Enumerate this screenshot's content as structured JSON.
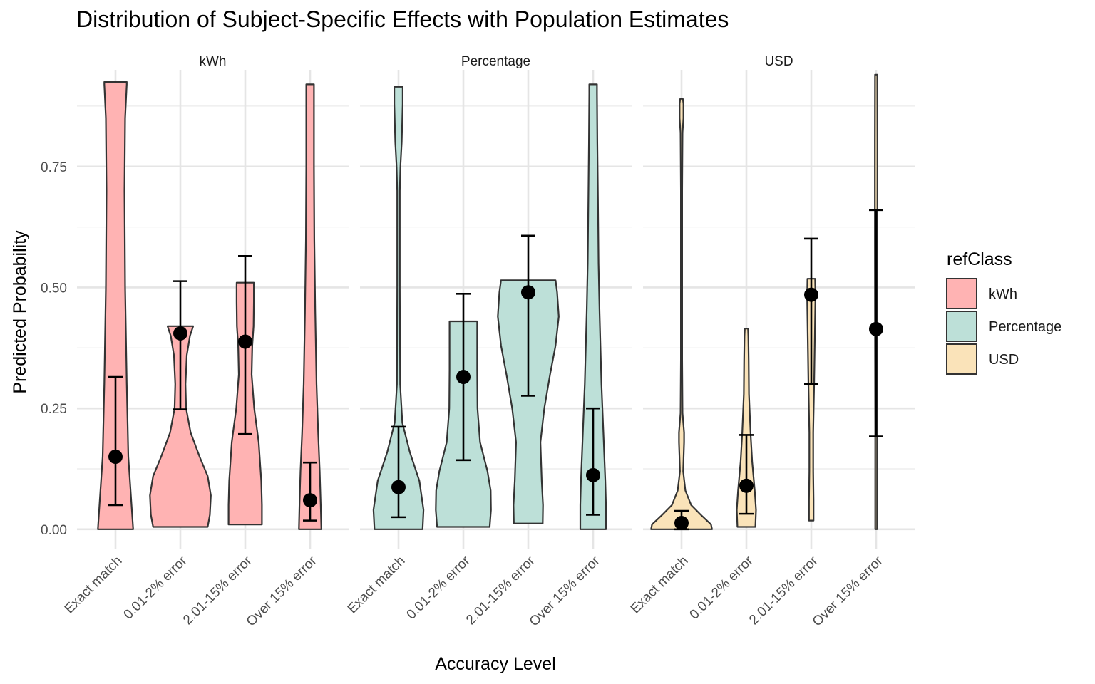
{
  "chart_data": {
    "type": "violin",
    "title": "Distribution of Subject-Specific Effects with Population Estimates",
    "xlabel": "Accuracy Level",
    "ylabel": "Predicted Probability",
    "ylim": [
      -0.04,
      0.95
    ],
    "yticks": [
      0.0,
      0.25,
      0.5,
      0.75
    ],
    "ytick_labels": [
      "0.00",
      "0.25",
      "0.50",
      "0.75"
    ],
    "categories": [
      "Exact match",
      "0.01-2% error",
      "2.01-15% error",
      "Over 15% error"
    ],
    "grid": true,
    "legend": {
      "title": "refClass",
      "placement": "right",
      "entries": [
        "kWh",
        "Percentage",
        "USD"
      ]
    },
    "colors": {
      "kWh": "#ffb3b3",
      "Percentage": "#bde0d8",
      "USD": "#fae3b9"
    },
    "panels": [
      {
        "name": "kWh",
        "estimates": [
          {
            "category": "Exact match",
            "point": 0.15,
            "lower": 0.05,
            "upper": 0.315,
            "range": [
              0.0,
              0.925
            ],
            "density": [
              [
                0.0,
                0.55
              ],
              [
                0.05,
                0.5
              ],
              [
                0.15,
                0.4
              ],
              [
                0.3,
                0.35
              ],
              [
                0.5,
                0.3
              ],
              [
                0.7,
                0.28
              ],
              [
                0.85,
                0.3
              ],
              [
                0.92,
                0.35
              ],
              [
                0.925,
                0.35
              ]
            ]
          },
          {
            "category": "0.01-2% error",
            "point": 0.405,
            "lower": 0.248,
            "upper": 0.513,
            "range": [
              0.005,
              0.42
            ],
            "density": [
              [
                0.005,
                0.85
              ],
              [
                0.03,
                0.92
              ],
              [
                0.07,
                0.95
              ],
              [
                0.11,
                0.85
              ],
              [
                0.15,
                0.6
              ],
              [
                0.2,
                0.32
              ],
              [
                0.25,
                0.18
              ],
              [
                0.3,
                0.16
              ],
              [
                0.36,
                0.2
              ],
              [
                0.4,
                0.3
              ],
              [
                0.42,
                0.4
              ]
            ]
          },
          {
            "category": "2.01-15% error",
            "point": 0.388,
            "lower": 0.197,
            "upper": 0.565,
            "range": [
              0.01,
              0.51
            ],
            "density": [
              [
                0.01,
                0.52
              ],
              [
                0.05,
                0.52
              ],
              [
                0.1,
                0.5
              ],
              [
                0.18,
                0.42
              ],
              [
                0.25,
                0.28
              ],
              [
                0.32,
                0.2
              ],
              [
                0.38,
                0.22
              ],
              [
                0.42,
                0.26
              ],
              [
                0.47,
                0.27
              ],
              [
                0.5,
                0.27
              ],
              [
                0.51,
                0.27
              ]
            ]
          },
          {
            "category": "Over 15% error",
            "point": 0.06,
            "lower": 0.018,
            "upper": 0.138,
            "range": [
              0.0,
              0.92
            ],
            "density": [
              [
                0.0,
                0.35
              ],
              [
                0.05,
                0.33
              ],
              [
                0.12,
                0.3
              ],
              [
                0.2,
                0.25
              ],
              [
                0.3,
                0.2
              ],
              [
                0.45,
                0.16
              ],
              [
                0.6,
                0.13
              ],
              [
                0.75,
                0.12
              ],
              [
                0.9,
                0.12
              ],
              [
                0.92,
                0.12
              ]
            ]
          }
        ]
      },
      {
        "name": "Percentage",
        "estimates": [
          {
            "category": "Exact match",
            "point": 0.087,
            "lower": 0.025,
            "upper": 0.212,
            "range": [
              0.0,
              0.915
            ],
            "density": [
              [
                0.0,
                0.75
              ],
              [
                0.04,
                0.78
              ],
              [
                0.1,
                0.65
              ],
              [
                0.16,
                0.35
              ],
              [
                0.22,
                0.12
              ],
              [
                0.3,
                0.05
              ],
              [
                0.5,
                0.04
              ],
              [
                0.7,
                0.04
              ],
              [
                0.75,
                0.06
              ],
              [
                0.8,
                0.1
              ],
              [
                0.88,
                0.13
              ],
              [
                0.915,
                0.13
              ]
            ]
          },
          {
            "category": "0.01-2% error",
            "point": 0.315,
            "lower": 0.143,
            "upper": 0.487,
            "range": [
              0.005,
              0.43
            ],
            "density": [
              [
                0.005,
                0.82
              ],
              [
                0.04,
                0.86
              ],
              [
                0.08,
                0.85
              ],
              [
                0.12,
                0.75
              ],
              [
                0.18,
                0.52
              ],
              [
                0.25,
                0.44
              ],
              [
                0.33,
                0.43
              ],
              [
                0.4,
                0.43
              ],
              [
                0.43,
                0.43
              ]
            ]
          },
          {
            "category": "2.01-15% error",
            "point": 0.49,
            "lower": 0.276,
            "upper": 0.607,
            "range": [
              0.012,
              0.515
            ],
            "density": [
              [
                0.012,
                0.45
              ],
              [
                0.05,
                0.46
              ],
              [
                0.1,
                0.42
              ],
              [
                0.18,
                0.38
              ],
              [
                0.25,
                0.5
              ],
              [
                0.32,
                0.68
              ],
              [
                0.38,
                0.85
              ],
              [
                0.44,
                0.95
              ],
              [
                0.49,
                0.9
              ],
              [
                0.515,
                0.85
              ]
            ]
          },
          {
            "category": "Over 15% error",
            "point": 0.112,
            "lower": 0.03,
            "upper": 0.25,
            "range": [
              0.0,
              0.92
            ],
            "density": [
              [
                0.0,
                0.4
              ],
              [
                0.05,
                0.4
              ],
              [
                0.1,
                0.38
              ],
              [
                0.2,
                0.32
              ],
              [
                0.3,
                0.26
              ],
              [
                0.45,
                0.2
              ],
              [
                0.55,
                0.17
              ],
              [
                0.68,
                0.15
              ],
              [
                0.8,
                0.13
              ],
              [
                0.9,
                0.12
              ],
              [
                0.92,
                0.12
              ]
            ]
          }
        ]
      },
      {
        "name": "USD",
        "estimates": [
          {
            "category": "Exact match",
            "point": 0.013,
            "lower": 0.0,
            "upper": 0.038,
            "range": [
              0.0,
              0.89
            ],
            "density": [
              [
                0.0,
                0.95
              ],
              [
                0.01,
                0.92
              ],
              [
                0.03,
                0.6
              ],
              [
                0.05,
                0.3
              ],
              [
                0.08,
                0.12
              ],
              [
                0.12,
                0.05
              ],
              [
                0.18,
                0.08
              ],
              [
                0.2,
                0.08
              ],
              [
                0.24,
                0.03
              ],
              [
                0.35,
                0.02
              ],
              [
                0.5,
                0.02
              ],
              [
                0.7,
                0.02
              ],
              [
                0.82,
                0.03
              ],
              [
                0.85,
                0.06
              ],
              [
                0.88,
                0.06
              ],
              [
                0.89,
                0.04
              ]
            ]
          },
          {
            "category": "0.01-2% error",
            "point": 0.09,
            "lower": 0.032,
            "upper": 0.195,
            "range": [
              0.005,
              0.415
            ],
            "density": [
              [
                0.005,
                0.28
              ],
              [
                0.04,
                0.3
              ],
              [
                0.08,
                0.26
              ],
              [
                0.14,
                0.18
              ],
              [
                0.2,
                0.13
              ],
              [
                0.28,
                0.08
              ],
              [
                0.35,
                0.07
              ],
              [
                0.4,
                0.06
              ],
              [
                0.415,
                0.05
              ]
            ]
          },
          {
            "category": "2.01-15% error",
            "point": 0.485,
            "lower": 0.3,
            "upper": 0.601,
            "range": [
              0.018,
              0.518
            ],
            "density": [
              [
                0.018,
                0.07
              ],
              [
                0.06,
                0.07
              ],
              [
                0.12,
                0.06
              ],
              [
                0.2,
                0.06
              ],
              [
                0.3,
                0.09
              ],
              [
                0.4,
                0.11
              ],
              [
                0.48,
                0.13
              ],
              [
                0.518,
                0.12
              ]
            ]
          },
          {
            "category": "Over 15% error",
            "point": 0.414,
            "lower": 0.192,
            "upper": 0.66,
            "range": [
              0.0,
              0.94
            ],
            "density": [
              [
                0.0,
                0.03
              ],
              [
                0.2,
                0.03
              ],
              [
                0.4,
                0.035
              ],
              [
                0.6,
                0.04
              ],
              [
                0.8,
                0.04
              ],
              [
                0.94,
                0.035
              ]
            ]
          }
        ]
      }
    ]
  }
}
